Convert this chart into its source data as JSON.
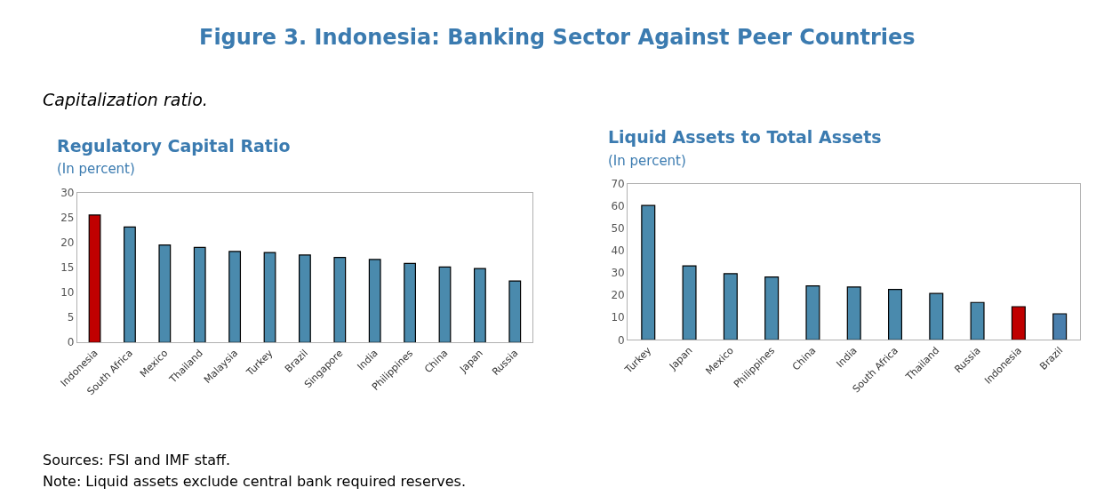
{
  "chart_data": [
    {
      "type": "bar",
      "title": "Regulatory Capital Ratio",
      "subtitle": "(In percent)",
      "categories": [
        "Indonesia",
        "South Africa",
        "Mexico",
        "Thailand",
        "Malaysia",
        "Turkey",
        "Brazil",
        "Singapore",
        "India",
        "Philippines",
        "China",
        "Japan",
        "Russia"
      ],
      "values": [
        25.5,
        23.1,
        19.5,
        19.0,
        18.2,
        18.0,
        17.5,
        17.0,
        16.6,
        15.8,
        15.1,
        14.8,
        12.3
      ],
      "colors": [
        "#c00000",
        "#4a8aad",
        "#4a8aad",
        "#4a8aad",
        "#4a8aad",
        "#4a8aad",
        "#4a8aad",
        "#4a8aad",
        "#4a8aad",
        "#4a8aad",
        "#4a8aad",
        "#4a8aad",
        "#4a8aad"
      ],
      "ylim": [
        0,
        30
      ],
      "yticks": [
        0,
        5,
        10,
        15,
        20,
        25,
        30
      ],
      "annotations": [
        "Figure 3. Indonesia: Banking Sector Against Peer Countries",
        "Capitalization ratio.",
        "Sources: FSI and IMF staff.",
        "Note: Liquid assets exclude central bank required reserves."
      ]
    },
    {
      "type": "bar",
      "title": "Liquid Assets to Total Assets",
      "subtitle": "(In percent)",
      "categories": [
        "Turkey",
        "Japan",
        "Mexico",
        "Philippines",
        "China",
        "India",
        "South Africa",
        "Thailand",
        "Russia",
        "Indonesia",
        "Brazil"
      ],
      "values": [
        60.3,
        33.2,
        29.7,
        28.2,
        24.2,
        23.7,
        22.6,
        20.8,
        16.8,
        14.9,
        11.7
      ],
      "colors": [
        "#4a8aad",
        "#4a8aad",
        "#4a8aad",
        "#4a8aad",
        "#4a8aad",
        "#4a8aad",
        "#4a8aad",
        "#4a8aad",
        "#4a8aad",
        "#c00000",
        "#4a7fad"
      ],
      "ylim": [
        0,
        70
      ],
      "yticks": [
        0,
        10,
        20,
        30,
        40,
        50,
        60,
        70
      ]
    }
  ]
}
